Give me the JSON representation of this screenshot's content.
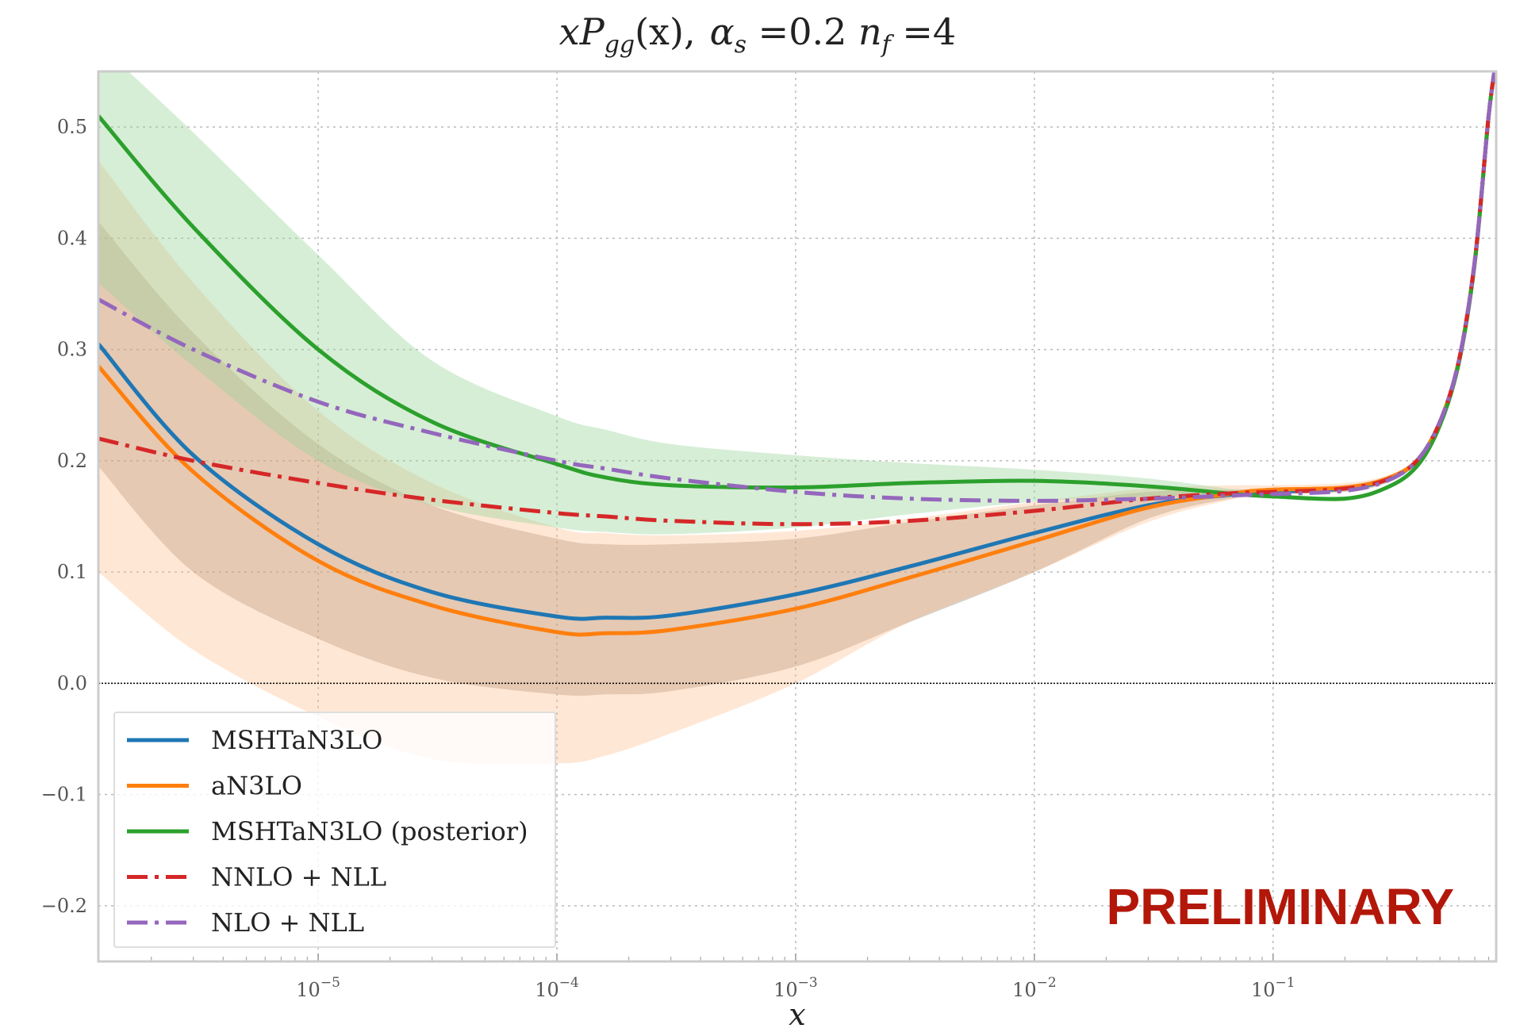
{
  "chart_data": {
    "type": "line",
    "title": "xP_gg(x),  α_s =0.2 n_f =4",
    "title_parts": {
      "xP": "xP",
      "gg": "gg",
      "x_arg": "(x),",
      "alpha": "α",
      "s": "s",
      "alpha_val": " =0.2 ",
      "n": "n",
      "f": "f",
      "n_val": " =4"
    },
    "xlabel": "x",
    "ylabel": "",
    "xscale": "log",
    "xlim": [
      1.2e-06,
      0.86
    ],
    "ylim": [
      -0.25,
      0.55
    ],
    "grid": true,
    "legend_position": "lower-left",
    "zero_line": true,
    "watermark": "PRELIMINARY",
    "x_ticks": [
      {
        "exp": -5,
        "label_base": "10",
        "label_exp": "−5"
      },
      {
        "exp": -4,
        "label_base": "10",
        "label_exp": "−4"
      },
      {
        "exp": -3,
        "label_base": "10",
        "label_exp": "−3"
      },
      {
        "exp": -2,
        "label_base": "10",
        "label_exp": "−2"
      },
      {
        "exp": -1,
        "label_base": "10",
        "label_exp": "−1"
      }
    ],
    "y_ticks": [
      {
        "value": 0.5,
        "label": "0.5"
      },
      {
        "value": 0.4,
        "label": "0.4"
      },
      {
        "value": 0.3,
        "label": "0.3"
      },
      {
        "value": 0.2,
        "label": "0.2"
      },
      {
        "value": 0.1,
        "label": "0.1"
      },
      {
        "value": 0.0,
        "label": "0.0"
      },
      {
        "value": -0.1,
        "label": "−0.1"
      },
      {
        "value": -0.2,
        "label": "−0.2"
      }
    ],
    "x": [
      1.2e-06,
      3e-06,
      1e-05,
      3e-05,
      0.0001,
      0.00016,
      0.0003,
      0.001,
      0.003,
      0.01,
      0.03,
      0.07,
      0.1,
      0.2,
      0.3,
      0.4,
      0.5,
      0.6,
      0.7,
      0.8,
      0.86
    ],
    "series": [
      {
        "name": "MSHTaN3LO",
        "color": "#1f77b4",
        "dash": "solid",
        "values": [
          0.305,
          0.205,
          0.125,
          0.082,
          0.06,
          0.059,
          0.061,
          0.08,
          0.105,
          0.135,
          0.16,
          0.17,
          0.172,
          0.175,
          0.183,
          0.2,
          0.235,
          0.29,
          0.38,
          0.51,
          0.56
        ],
        "band": {
          "color": "#8c7f6b",
          "opacity": 0.35,
          "lower": [
            0.195,
            0.1,
            0.04,
            0.005,
            -0.01,
            -0.01,
            -0.007,
            0.015,
            0.055,
            0.1,
            0.148,
            0.167,
            0.17,
            0.172,
            0.18,
            0.198,
            0.233,
            0.288,
            0.378,
            0.508,
            0.558
          ],
          "upper": [
            0.415,
            0.315,
            0.215,
            0.16,
            0.13,
            0.125,
            0.125,
            0.13,
            0.145,
            0.16,
            0.172,
            0.174,
            0.175,
            0.178,
            0.186,
            0.202,
            0.237,
            0.292,
            0.382,
            0.512,
            0.562
          ]
        }
      },
      {
        "name": "aN3LO",
        "color": "#ff7f0e",
        "dash": "solid",
        "values": [
          0.285,
          0.19,
          0.11,
          0.07,
          0.046,
          0.045,
          0.048,
          0.067,
          0.095,
          0.128,
          0.158,
          0.171,
          0.174,
          0.176,
          0.184,
          0.2,
          0.235,
          0.29,
          0.38,
          0.51,
          0.56
        ],
        "band": {
          "color": "#ffbb88",
          "opacity": 0.35,
          "lower": [
            0.1,
            0.03,
            -0.03,
            -0.068,
            -0.072,
            -0.065,
            -0.045,
            0.0,
            0.055,
            0.1,
            0.145,
            0.166,
            0.17,
            0.173,
            0.181,
            0.198,
            0.233,
            0.288,
            0.378,
            0.508,
            0.558
          ],
          "upper": [
            0.47,
            0.36,
            0.245,
            0.18,
            0.14,
            0.135,
            0.133,
            0.137,
            0.148,
            0.163,
            0.175,
            0.178,
            0.178,
            0.18,
            0.187,
            0.203,
            0.237,
            0.292,
            0.382,
            0.512,
            0.562
          ]
        }
      },
      {
        "name": "MSHTaN3LO (posterior)",
        "color": "#2ca02c",
        "dash": "solid",
        "values": [
          0.51,
          0.41,
          0.3,
          0.235,
          0.197,
          0.185,
          0.178,
          0.176,
          0.18,
          0.182,
          0.177,
          0.17,
          0.168,
          0.166,
          0.176,
          0.195,
          0.232,
          0.288,
          0.378,
          0.51,
          0.56
        ],
        "band": {
          "color": "#98d498",
          "opacity": 0.4,
          "lower": [
            0.36,
            0.285,
            0.2,
            0.16,
            0.14,
            0.136,
            0.134,
            0.14,
            0.152,
            0.163,
            0.168,
            0.168,
            0.166,
            0.164,
            0.174,
            0.193,
            0.23,
            0.286,
            0.376,
            0.508,
            0.558
          ],
          "upper": [
            0.575,
            0.495,
            0.385,
            0.29,
            0.24,
            0.228,
            0.215,
            0.205,
            0.198,
            0.192,
            0.184,
            0.174,
            0.17,
            0.168,
            0.178,
            0.197,
            0.234,
            0.29,
            0.38,
            0.512,
            0.562
          ]
        }
      },
      {
        "name": "NNLO + NLL",
        "color": "#d62728",
        "dash": "dashdot",
        "values": [
          0.22,
          0.2,
          0.18,
          0.165,
          0.153,
          0.15,
          0.146,
          0.143,
          0.146,
          0.155,
          0.166,
          0.171,
          0.172,
          0.175,
          0.183,
          0.2,
          0.235,
          0.29,
          0.38,
          0.51,
          0.56
        ]
      },
      {
        "name": "NLO + NLL",
        "color": "#9467bd",
        "dash": "dashdot",
        "values": [
          0.345,
          0.3,
          0.253,
          0.225,
          0.2,
          0.193,
          0.184,
          0.172,
          0.166,
          0.164,
          0.166,
          0.169,
          0.17,
          0.173,
          0.182,
          0.2,
          0.235,
          0.29,
          0.38,
          0.51,
          0.56
        ]
      }
    ]
  }
}
